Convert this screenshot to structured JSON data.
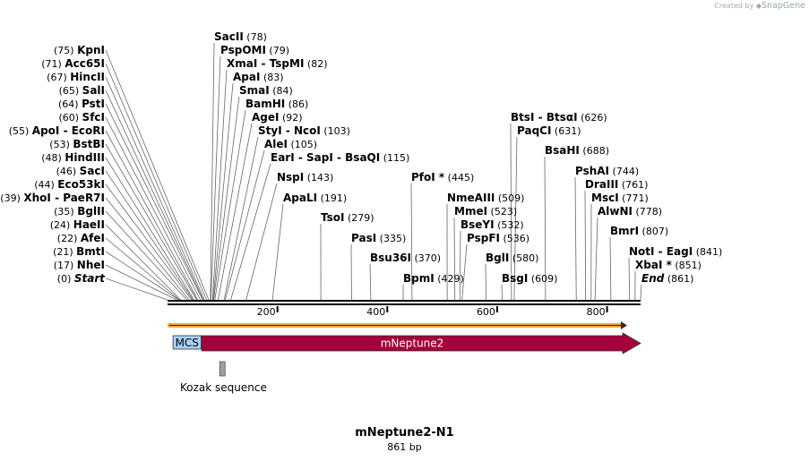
{
  "watermark": {
    "prefix": "Created by",
    "brand": "SnapGene"
  },
  "plasmid": {
    "name": "mNeptune2-N1",
    "size_label": "861 bp",
    "length": 861
  },
  "ruler_ticks": [
    {
      "pos": 200,
      "label": "200"
    },
    {
      "pos": 400,
      "label": "400"
    },
    {
      "pos": 600,
      "label": "600"
    },
    {
      "pos": 800,
      "label": "800"
    }
  ],
  "features": [
    {
      "name": "MCS",
      "start": 10,
      "end": 61,
      "color": "#a8d0f8",
      "text_color": "#000000",
      "shape": "box"
    },
    {
      "name": "mNeptune2",
      "start": 62,
      "end": 861,
      "color": "#a3003c",
      "text_color": "#ffffff",
      "shape": "arrow"
    },
    {
      "name": "Kozak sequence",
      "start": 95,
      "end": 104,
      "color": "#a0a0a0",
      "shape": "box"
    }
  ],
  "left_sites": [
    {
      "name": "Start",
      "pos": "(0)",
      "site": 0,
      "italic": true
    },
    {
      "name": "NheI",
      "pos": "(17)",
      "site": 17
    },
    {
      "name": "BmtI",
      "pos": "(21)",
      "site": 21
    },
    {
      "name": "AfeI",
      "pos": "(22)",
      "site": 22
    },
    {
      "name": "HaeII",
      "pos": "(24)",
      "site": 24
    },
    {
      "name": "BglII",
      "pos": "(35)",
      "site": 35
    },
    {
      "name": "XhoI",
      "name2": "PaeR7I",
      "pos": "(39)",
      "site": 39
    },
    {
      "name": "Eco53kI",
      "pos": "(44)",
      "site": 44
    },
    {
      "name": "SacI",
      "pos": "(46)",
      "site": 46
    },
    {
      "name": "HindIII",
      "pos": "(48)",
      "site": 48
    },
    {
      "name": "BstBI",
      "pos": "(53)",
      "site": 53
    },
    {
      "name": "ApoI",
      "name2": "EcoRI",
      "pos": "(55)",
      "site": 55
    },
    {
      "name": "SfcI",
      "pos": "(60)",
      "site": 60
    },
    {
      "name": "PstI",
      "pos": "(64)",
      "site": 64
    },
    {
      "name": "SalI",
      "pos": "(65)",
      "site": 65
    },
    {
      "name": "HincII",
      "pos": "(67)",
      "site": 67
    },
    {
      "name": "Acc65I",
      "pos": "(71)",
      "site": 71
    },
    {
      "name": "KpnI",
      "pos": "(75)",
      "site": 75
    }
  ],
  "right_sites": [
    {
      "name": "SacII",
      "pos": "(78)",
      "site": 78
    },
    {
      "name": "PspOMI",
      "pos": "(79)",
      "site": 79
    },
    {
      "name": "XmaI",
      "name2": "TspMI",
      "pos": "(82)",
      "site": 82
    },
    {
      "name": "ApaI",
      "pos": "(83)",
      "site": 83
    },
    {
      "name": "SmaI",
      "pos": "(84)",
      "site": 84
    },
    {
      "name": "BamHI",
      "pos": "(86)",
      "site": 86
    },
    {
      "name": "AgeI",
      "pos": "(92)",
      "site": 92
    },
    {
      "name": "StyI",
      "name2": "NcoI",
      "pos": "(103)",
      "site": 103
    },
    {
      "name": "AleI",
      "pos": "(105)",
      "site": 105
    },
    {
      "name": "EarI",
      "name2": "SapI",
      "name3": "BsaQI",
      "pos": "(115)",
      "site": 115
    },
    {
      "name": "NspI",
      "pos": "(143)",
      "site": 143
    },
    {
      "name": "ApaLI",
      "pos": "(191)",
      "site": 191
    },
    {
      "name": "TsoI",
      "pos": "(279)",
      "site": 279
    },
    {
      "name": "PasI",
      "pos": "(335)",
      "site": 335
    },
    {
      "name": "Bsu36I",
      "pos": "(370)",
      "site": 370
    },
    {
      "name": "BpmI",
      "pos": "(429)",
      "site": 429
    },
    {
      "name": "PfoI *",
      "pos": "(445)",
      "site": 445
    },
    {
      "name": "NmeAIII",
      "pos": "(509)",
      "site": 509
    },
    {
      "name": "MmeI",
      "pos": "(523)",
      "site": 523
    },
    {
      "name": "BseYI",
      "pos": "(532)",
      "site": 532
    },
    {
      "name": "PspFI",
      "pos": "(536)",
      "site": 536
    },
    {
      "name": "BglI",
      "pos": "(580)",
      "site": 580
    },
    {
      "name": "BsgI",
      "pos": "(609)",
      "site": 609
    },
    {
      "name": "BtsI",
      "name2": "BtsαI",
      "pos": "(626)",
      "site": 626
    },
    {
      "name": "PaqCI",
      "pos": "(631)",
      "site": 631
    },
    {
      "name": "BsaHI",
      "pos": "(688)",
      "site": 688
    },
    {
      "name": "PshAI",
      "pos": "(744)",
      "site": 744
    },
    {
      "name": "DraIII",
      "pos": "(761)",
      "site": 761
    },
    {
      "name": "MscI",
      "pos": "(771)",
      "site": 771
    },
    {
      "name": "AlwNI",
      "pos": "(778)",
      "site": 778
    },
    {
      "name": "BmrI",
      "pos": "(807)",
      "site": 807
    },
    {
      "name": "NotI",
      "name2": "EagI",
      "pos": "(841)",
      "site": 841
    },
    {
      "name": "XbaI *",
      "pos": "(851)",
      "site": 851
    },
    {
      "name": "End",
      "pos": "(861)",
      "site": 861,
      "italic": true
    }
  ]
}
